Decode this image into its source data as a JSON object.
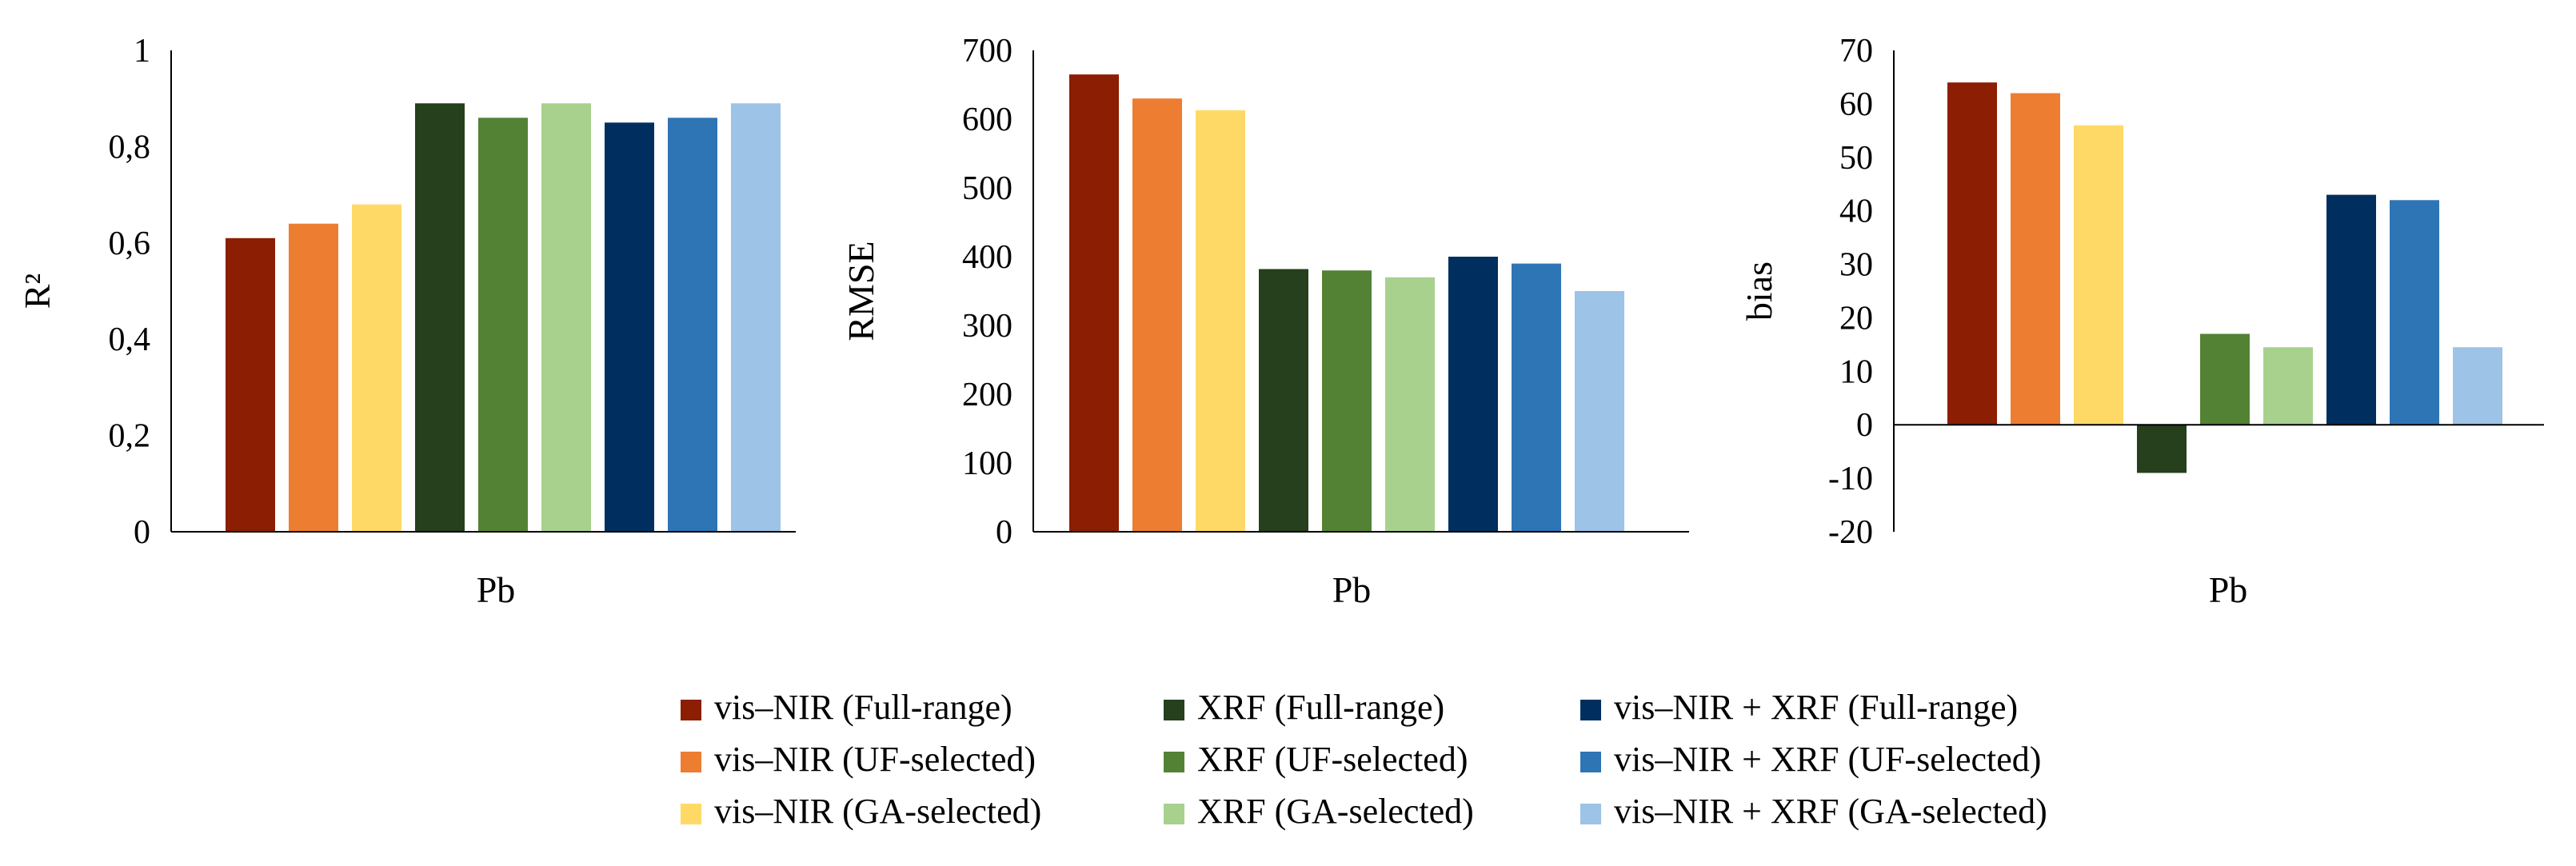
{
  "legend": [
    {
      "label": "vis–NIR (Full-range)",
      "color": "#8B1E03"
    },
    {
      "label": "vis–NIR (UF-selected)",
      "color": "#ED7D31"
    },
    {
      "label": "vis–NIR (GA-selected)",
      "color": "#FFD966"
    },
    {
      "label": "XRF (Full-range)",
      "color": "#263F1C"
    },
    {
      "label": "XRF (UF-selected)",
      "color": "#548235"
    },
    {
      "label": "XRF (GA-selected)",
      "color": "#A9D18E"
    },
    {
      "label": "vis–NIR + XRF (Full-range)",
      "color": "#002F5F"
    },
    {
      "label": "vis–NIR + XRF (UF-selected)",
      "color": "#2E75B6"
    },
    {
      "label": "vis–NIR + XRF (GA-selected)",
      "color": "#9DC3E6"
    }
  ],
  "chart_data": [
    {
      "type": "bar",
      "title": "",
      "xlabel": "",
      "ylabel": "R²",
      "categories": [
        "Pb"
      ],
      "ylim": [
        0,
        1
      ],
      "yticks": [
        0,
        0.2,
        0.4,
        0.6,
        0.8,
        1
      ],
      "ytick_labels": [
        "0",
        "0,2",
        "0,4",
        "0,6",
        "0,8",
        "1"
      ],
      "series": [
        {
          "name": "vis–NIR (Full-range)",
          "values": [
            0.61
          ]
        },
        {
          "name": "vis–NIR (UF-selected)",
          "values": [
            0.64
          ]
        },
        {
          "name": "vis–NIR (GA-selected)",
          "values": [
            0.68
          ]
        },
        {
          "name": "XRF (Full-range)",
          "values": [
            0.89
          ]
        },
        {
          "name": "XRF (UF-selected)",
          "values": [
            0.86
          ]
        },
        {
          "name": "XRF (GA-selected)",
          "values": [
            0.89
          ]
        },
        {
          "name": "vis–NIR + XRF (Full-range)",
          "values": [
            0.85
          ]
        },
        {
          "name": "vis–NIR + XRF (UF-selected)",
          "values": [
            0.86
          ]
        },
        {
          "name": "vis–NIR + XRF (GA-selected)",
          "values": [
            0.89
          ]
        }
      ]
    },
    {
      "type": "bar",
      "title": "",
      "xlabel": "",
      "ylabel": "RMSE",
      "categories": [
        "Pb"
      ],
      "ylim": [
        0,
        700
      ],
      "yticks": [
        0,
        100,
        200,
        300,
        400,
        500,
        600,
        700
      ],
      "ytick_labels": [
        "0",
        "100",
        "200",
        "300",
        "400",
        "500",
        "600",
        "700"
      ],
      "series": [
        {
          "name": "vis–NIR (Full-range)",
          "values": [
            665
          ]
        },
        {
          "name": "vis–NIR (UF-selected)",
          "values": [
            630
          ]
        },
        {
          "name": "vis–NIR (GA-selected)",
          "values": [
            613
          ]
        },
        {
          "name": "XRF (Full-range)",
          "values": [
            382
          ]
        },
        {
          "name": "XRF (UF-selected)",
          "values": [
            380
          ]
        },
        {
          "name": "XRF (GA-selected)",
          "values": [
            370
          ]
        },
        {
          "name": "vis–NIR + XRF (Full-range)",
          "values": [
            400
          ]
        },
        {
          "name": "vis–NIR + XRF (UF-selected)",
          "values": [
            390
          ]
        },
        {
          "name": "vis–NIR + XRF (GA-selected)",
          "values": [
            350
          ]
        }
      ]
    },
    {
      "type": "bar",
      "title": "",
      "xlabel": "",
      "ylabel": "bias",
      "categories": [
        "Pb"
      ],
      "ylim": [
        -20,
        70
      ],
      "yticks": [
        -20,
        -10,
        0,
        10,
        20,
        30,
        40,
        50,
        60,
        70
      ],
      "ytick_labels": [
        "-20",
        "-10",
        "0",
        "10",
        "20",
        "30",
        "40",
        "50",
        "60",
        "70"
      ],
      "series": [
        {
          "name": "vis–NIR (Full-range)",
          "values": [
            64
          ]
        },
        {
          "name": "vis–NIR (UF-selected)",
          "values": [
            62
          ]
        },
        {
          "name": "vis–NIR (GA-selected)",
          "values": [
            56
          ]
        },
        {
          "name": "XRF (Full-range)",
          "values": [
            -9
          ]
        },
        {
          "name": "XRF (UF-selected)",
          "values": [
            17
          ]
        },
        {
          "name": "XRF (GA-selected)",
          "values": [
            14.5
          ]
        },
        {
          "name": "vis–NIR + XRF (Full-range)",
          "values": [
            43
          ]
        },
        {
          "name": "vis–NIR + XRF (UF-selected)",
          "values": [
            42
          ]
        },
        {
          "name": "vis–NIR + XRF (GA-selected)",
          "values": [
            14.5
          ]
        }
      ]
    }
  ]
}
